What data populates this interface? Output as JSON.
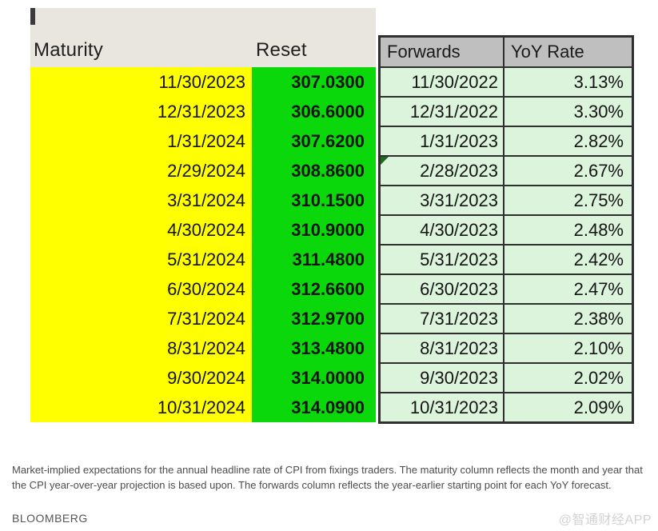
{
  "chart_data": {
    "type": "table",
    "columns": [
      "Maturity",
      "Reset",
      "Forwards",
      "YoY Rate"
    ],
    "rows": [
      [
        "11/30/2023",
        "307.0300",
        "11/30/2022",
        "3.13%"
      ],
      [
        "12/31/2023",
        "306.6000",
        "12/31/2022",
        "3.30%"
      ],
      [
        "1/31/2024",
        "307.6200",
        "1/31/2023",
        "2.82%"
      ],
      [
        "2/29/2024",
        "308.8600",
        "2/28/2023",
        "2.67%"
      ],
      [
        "3/31/2024",
        "310.1500",
        "3/31/2023",
        "2.75%"
      ],
      [
        "4/30/2024",
        "310.9000",
        "4/30/2023",
        "2.48%"
      ],
      [
        "5/31/2024",
        "311.4800",
        "5/31/2023",
        "2.42%"
      ],
      [
        "6/30/2024",
        "312.6600",
        "6/30/2023",
        "2.47%"
      ],
      [
        "7/31/2024",
        "312.9700",
        "7/31/2023",
        "2.38%"
      ],
      [
        "8/31/2024",
        "313.4800",
        "8/31/2023",
        "2.10%"
      ],
      [
        "9/30/2024",
        "314.0000",
        "9/30/2023",
        "2.02%"
      ],
      [
        "10/31/2024",
        "314.0900",
        "10/31/2023",
        "2.09%"
      ]
    ],
    "annotations": {
      "note_marker_cell": "2/28/2023"
    }
  },
  "caption": "Market-implied expectations for the annual headline rate of CPI from fixings traders. The maturity column reflects the month and year that the CPI year-over-year projection is based upon. The forwards column reflects the year-earlier starting point for each YoY forecast.",
  "source": "BLOOMBERG",
  "watermark": "@智通财经APP",
  "colors": {
    "maturity_column_fill": "#ffff00",
    "reset_column_fill": "#0ad80a",
    "forwards_header_fill": "#bfbfbf",
    "forwards_cell_fill": "#dcf3dc",
    "table_border": "#2f2f2f",
    "header_band_fill": "#e9e6df",
    "note_marker_green": "#1d6b1d",
    "watermark_gray": "#d2d2d2"
  }
}
